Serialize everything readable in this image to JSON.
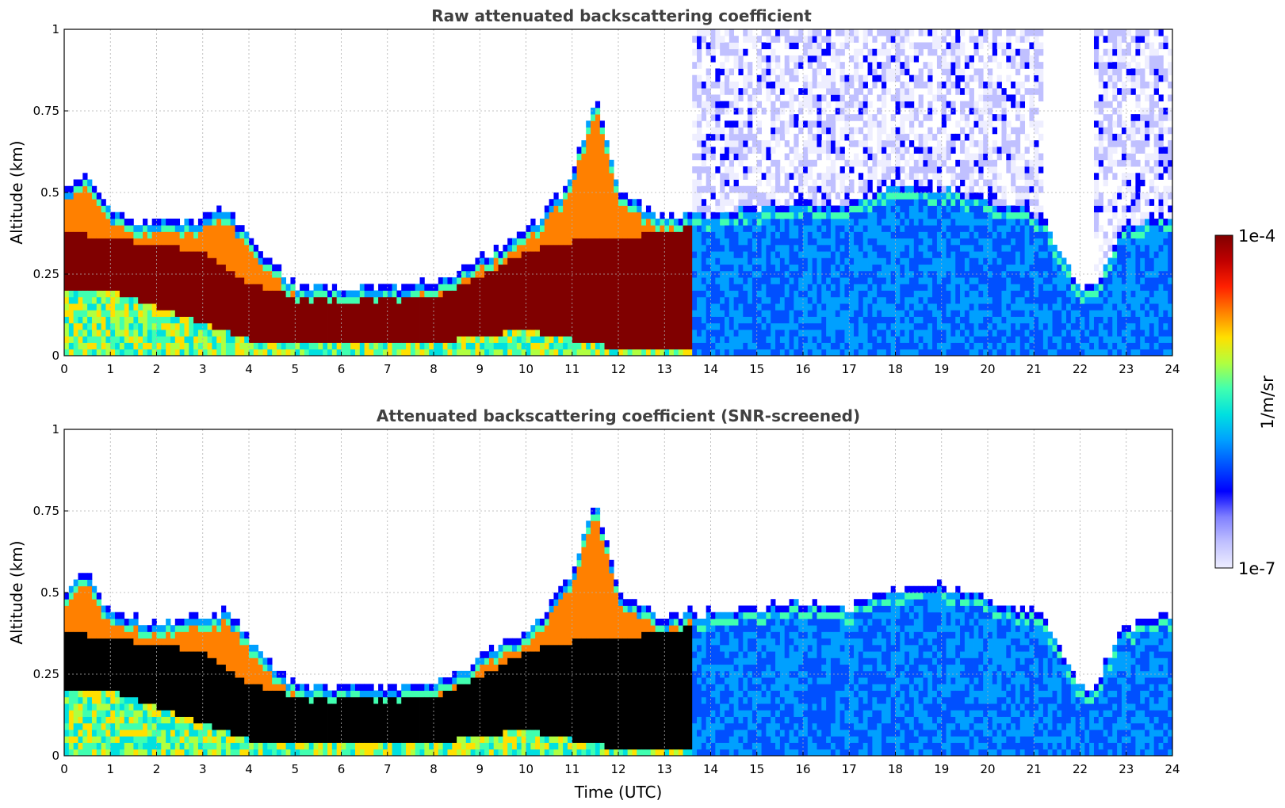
{
  "chart_data": [
    {
      "type": "heatmap",
      "title": "Raw attenuated backscattering coefficient",
      "xlabel": "",
      "ylabel": "Altitude (km)",
      "xlim": [
        0,
        24
      ],
      "ylim": [
        0,
        1
      ],
      "xticks": [
        "0",
        "1",
        "2",
        "3",
        "4",
        "5",
        "6",
        "7",
        "8",
        "9",
        "10",
        "11",
        "12",
        "13",
        "14",
        "15",
        "16",
        "17",
        "18",
        "19",
        "20",
        "21",
        "22",
        "23",
        "24"
      ],
      "yticks": [
        "0",
        "0.25",
        "0.5",
        "0.75",
        "1"
      ],
      "grid": true,
      "screened": false,
      "layer_top_km": {
        "time_h": [
          0,
          0.5,
          1,
          1.5,
          2,
          2.5,
          3,
          3.5,
          4,
          5,
          6,
          6.5,
          7,
          8,
          9,
          10,
          10.5,
          11,
          11.5,
          12,
          13,
          13.6,
          14,
          16,
          17,
          17.5,
          18,
          19,
          20,
          21,
          21.2,
          22,
          22.3,
          23,
          23.5,
          24
        ],
        "altitude_km": [
          0.5,
          0.56,
          0.44,
          0.42,
          0.41,
          0.42,
          0.42,
          0.45,
          0.36,
          0.22,
          0.21,
          0.22,
          0.21,
          0.22,
          0.3,
          0.38,
          0.45,
          0.55,
          0.8,
          0.5,
          0.42,
          0.44,
          0.44,
          0.47,
          0.46,
          0.5,
          0.52,
          0.52,
          0.48,
          0.44,
          0.42,
          0.21,
          0.21,
          0.4,
          0.41,
          0.44
        ]
      },
      "dense_layer_km": {
        "time_h": [
          0,
          1,
          2,
          3,
          4,
          5,
          6,
          7,
          8,
          9,
          10,
          11,
          12,
          13,
          13.6
        ],
        "base": [
          0.2,
          0.2,
          0.15,
          0.1,
          0.05,
          0.04,
          0.04,
          0.04,
          0.04,
          0.06,
          0.08,
          0.05,
          0.02,
          0.02,
          0.02
        ],
        "top": [
          0.38,
          0.36,
          0.34,
          0.32,
          0.22,
          0.18,
          0.17,
          0.17,
          0.18,
          0.24,
          0.32,
          0.35,
          0.36,
          0.38,
          0.4
        ]
      },
      "noise_above_layer_hours": [
        [
          13.6,
          21.2
        ],
        [
          22.3,
          24
        ]
      ]
    },
    {
      "type": "heatmap",
      "title": "Attenuated backscattering coefficient (SNR-screened)",
      "xlabel": "Time (UTC)",
      "ylabel": "Altitude (km)",
      "xlim": [
        0,
        24
      ],
      "ylim": [
        0,
        1
      ],
      "xticks": [
        "0",
        "1",
        "2",
        "3",
        "4",
        "5",
        "6",
        "7",
        "8",
        "9",
        "10",
        "11",
        "12",
        "13",
        "14",
        "15",
        "16",
        "17",
        "18",
        "19",
        "20",
        "21",
        "22",
        "23",
        "24"
      ],
      "yticks": [
        "0",
        "0.25",
        "0.5",
        "0.75",
        "1"
      ],
      "grid": true,
      "screened": true,
      "saturated_color": "#000000"
    }
  ],
  "colorbar": {
    "max_label": "1e-4",
    "min_label": "1e-7",
    "units": "1/m/sr",
    "scale": "log",
    "colors": [
      "#eeeeff",
      "#c0c0ff",
      "#8080ff",
      "#0000ff",
      "#0050ff",
      "#00a0ff",
      "#00e0e0",
      "#40ffb0",
      "#b0ff40",
      "#ffe000",
      "#ff8000",
      "#ff2000",
      "#c00000",
      "#800000"
    ]
  }
}
